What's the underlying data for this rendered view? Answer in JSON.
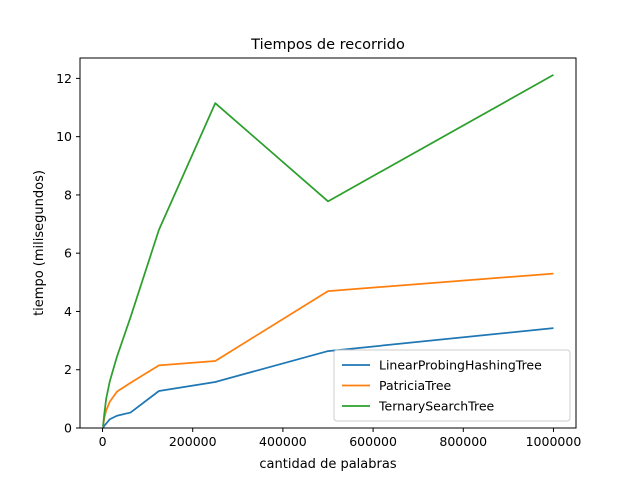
{
  "chart_data": {
    "type": "line",
    "title": "Tiempos de recorrido",
    "xlabel": "cantidad de palabras",
    "ylabel": "tiempo (milisegundos)",
    "xlim": [
      -50000,
      1050000
    ],
    "ylim": [
      0,
      12.7
    ],
    "xticks": [
      0,
      200000,
      400000,
      600000,
      800000,
      1000000
    ],
    "xtick_labels": [
      "0",
      "200000",
      "400000",
      "600000",
      "800000",
      "1000000"
    ],
    "yticks": [
      0,
      2,
      4,
      6,
      8,
      10,
      12
    ],
    "ytick_labels": [
      "0",
      "2",
      "4",
      "6",
      "8",
      "10",
      "12"
    ],
    "grid": false,
    "legend_position": "lower-right",
    "series": [
      {
        "name": "LinearProbingHashingTree",
        "color": "#1f77b4",
        "x": [
          1000,
          2000,
          4000,
          8000,
          16000,
          32000,
          62000,
          125000,
          250000,
          500000,
          1000000
        ],
        "y": [
          0.01,
          0.03,
          0.08,
          0.15,
          0.3,
          0.42,
          0.53,
          1.27,
          1.58,
          2.64,
          3.43
        ]
      },
      {
        "name": "PatriciaTree",
        "color": "#ff7f0e",
        "x": [
          1000,
          2000,
          4000,
          8000,
          16000,
          32000,
          62000,
          125000,
          250000,
          500000,
          1000000
        ],
        "y": [
          0.05,
          0.15,
          0.35,
          0.6,
          0.9,
          1.25,
          1.55,
          2.15,
          2.3,
          4.7,
          5.3
        ]
      },
      {
        "name": "TernarySearchTree",
        "color": "#2ca02c",
        "x": [
          1000,
          2000,
          4000,
          8000,
          16000,
          32000,
          62000,
          125000,
          250000,
          500000,
          1000000
        ],
        "y": [
          0.05,
          0.2,
          0.5,
          1.0,
          1.6,
          2.45,
          3.8,
          6.8,
          11.15,
          7.78,
          12.12
        ]
      }
    ]
  }
}
